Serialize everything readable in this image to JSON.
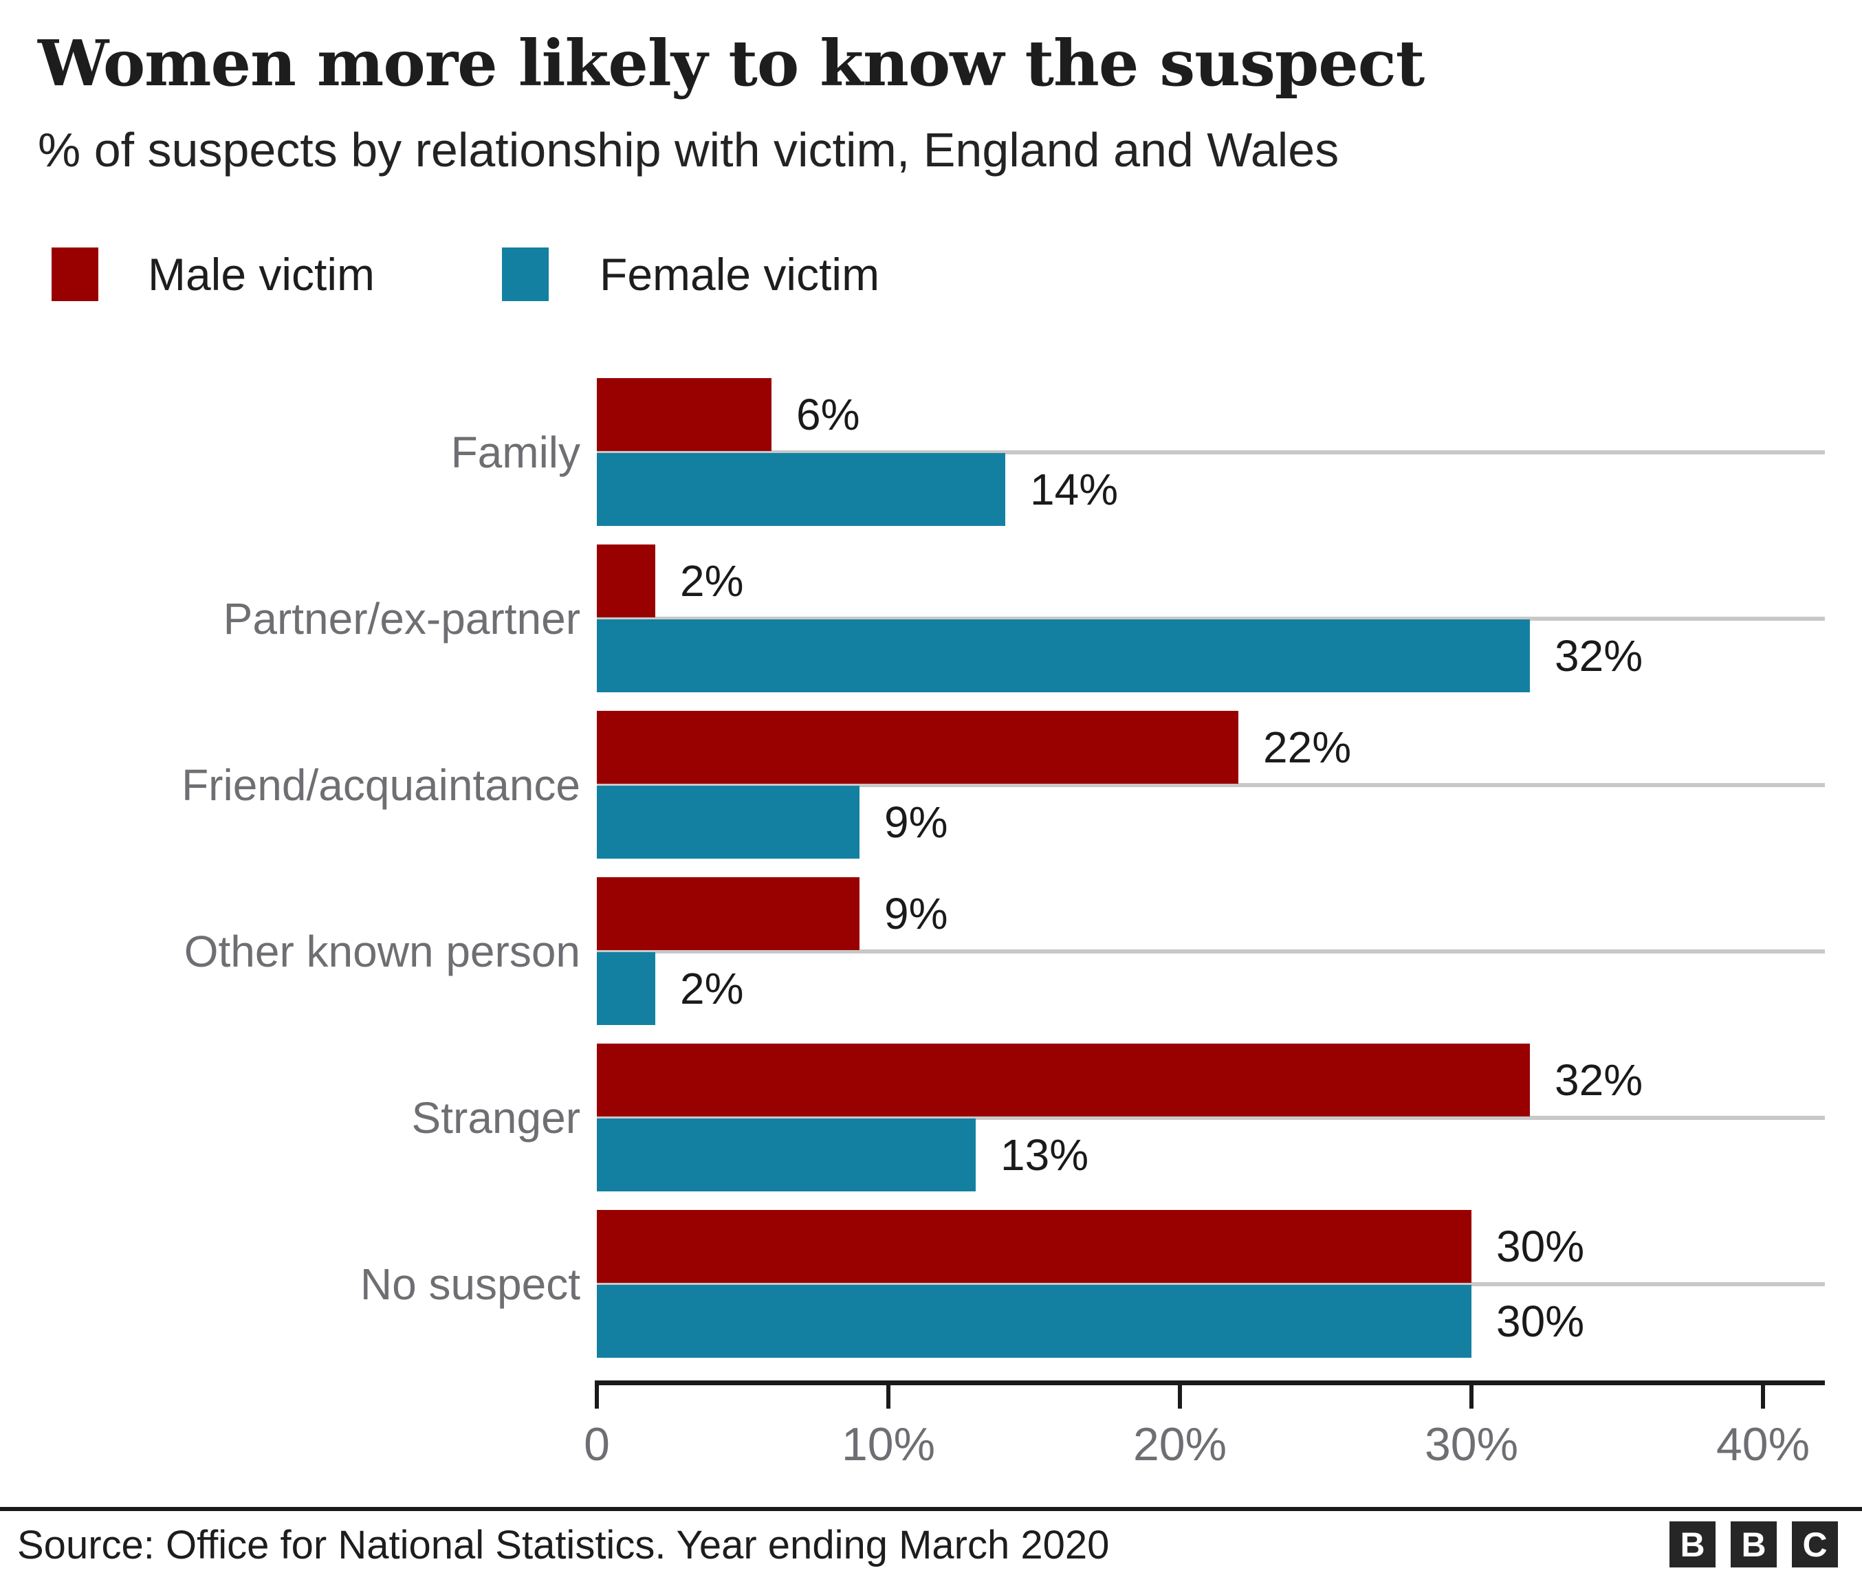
{
  "header": {
    "title": "Women more likely to know the suspect",
    "subtitle": "% of suspects by relationship with victim, England and Wales"
  },
  "legend": {
    "items": [
      {
        "label": "Male victim",
        "color": "#990000"
      },
      {
        "label": "Female victim",
        "color": "#1380A1"
      }
    ]
  },
  "chart_data": {
    "type": "bar",
    "orientation": "horizontal",
    "title": "Women more likely to know the suspect",
    "subtitle": "% of suspects by relationship with victim, England and Wales",
    "categories": [
      "Family",
      "Partner/ex-partner",
      "Friend/acquaintance",
      "Other known person",
      "Stranger",
      "No suspect"
    ],
    "series": [
      {
        "name": "Male victim",
        "color": "#990000",
        "values": [
          6,
          2,
          22,
          9,
          32,
          30
        ]
      },
      {
        "name": "Female victim",
        "color": "#1380A1",
        "values": [
          14,
          32,
          9,
          2,
          13,
          30
        ]
      }
    ],
    "value_suffix": "%",
    "data_labels": true,
    "x_ticks": [
      {
        "label": "0",
        "value": 0
      },
      {
        "label": "10%",
        "value": 10
      },
      {
        "label": "20%",
        "value": 20
      },
      {
        "label": "30%",
        "value": 30
      },
      {
        "label": "40%",
        "value": 40
      }
    ],
    "xlim": [
      0,
      42
    ],
    "grid": "horizontal category separator lines",
    "legend_position": "top-left",
    "xlabel": "",
    "ylabel": ""
  },
  "footer": {
    "source": "Source: Office for National Statistics. Year ending March 2020",
    "logo_letters": [
      "B",
      "B",
      "C"
    ]
  },
  "colors": {
    "male_bar": "#990000",
    "female_bar": "#1380A1",
    "category_label": "#6e6e73",
    "tick_label": "#6e6e73",
    "gridline": "#c8c8c8",
    "axis": "#1a1a1a",
    "text": "#1d1d1d"
  }
}
